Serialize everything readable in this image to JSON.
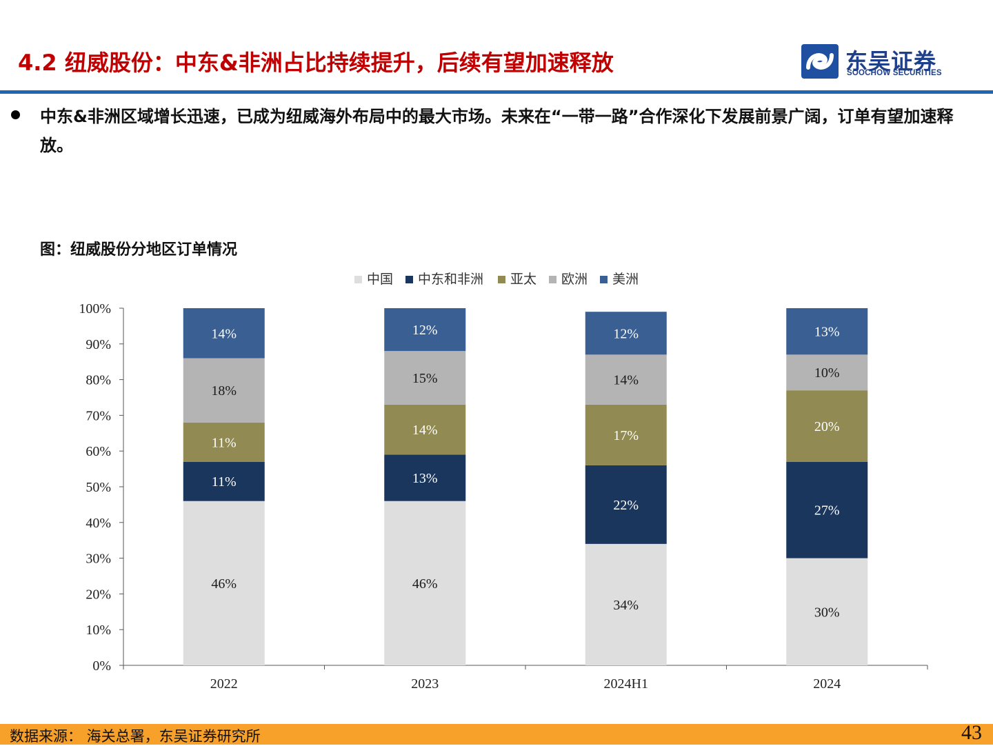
{
  "header": {
    "title": "4.2 纽威股份：中东&非洲占比持续提升，后续有望加速释放",
    "logo_name": "东吴证券",
    "logo_sub": "SOOCHOW SECURITIES"
  },
  "bullet": {
    "text": "中东&非洲区域增长迅速，已成为纽威海外布局中的最大市场。未来在“一带一路”合作深化下发展前景广阔，订单有望加速释放。"
  },
  "figure": {
    "title": "图：纽威股份分地区订单情况"
  },
  "colors": {
    "title_red": "#c00000",
    "brand_blue": "#1f66b4",
    "footer_orange": "#f7a02a"
  },
  "chart_data": {
    "type": "bar",
    "stacked": true,
    "categories": [
      "2022",
      "2023",
      "2024H1",
      "2024"
    ],
    "series": [
      {
        "name": "中国",
        "color": "#dedede",
        "label_color": "#1a1a1a",
        "values": [
          46,
          46,
          34,
          30
        ],
        "labels": [
          "46%",
          "46%",
          "34%",
          "30%"
        ]
      },
      {
        "name": "中东和非洲",
        "color": "#1a365d",
        "label_color": "#ffffff",
        "values": [
          11,
          13,
          22,
          27
        ],
        "labels": [
          "11%",
          "13%",
          "22%",
          "27%"
        ]
      },
      {
        "name": "亚太",
        "color": "#918a52",
        "label_color": "#ffffff",
        "values": [
          11,
          14,
          17,
          20
        ],
        "labels": [
          "11%",
          "14%",
          "17%",
          "20%"
        ]
      },
      {
        "name": "欧洲",
        "color": "#b4b4b4",
        "label_color": "#1a1a1a",
        "values": [
          18,
          15,
          14,
          10
        ],
        "labels": [
          "18%",
          "15%",
          "14%",
          "10%"
        ]
      },
      {
        "name": "美洲",
        "color": "#3a5f93",
        "label_color": "#ffffff",
        "values": [
          14,
          12,
          12,
          13
        ],
        "labels": [
          "14%",
          "12%",
          "12%",
          "13%"
        ]
      }
    ],
    "y_ticks": [
      "0%",
      "10%",
      "20%",
      "30%",
      "40%",
      "50%",
      "60%",
      "70%",
      "80%",
      "90%",
      "100%"
    ],
    "ylim": [
      0,
      100
    ],
    "xlabel": "",
    "ylabel": "",
    "legend_position": "top-center",
    "grid": false
  },
  "footer": {
    "source": "数据来源： 海关总署，东吴证券研究所",
    "page_number": "43"
  }
}
